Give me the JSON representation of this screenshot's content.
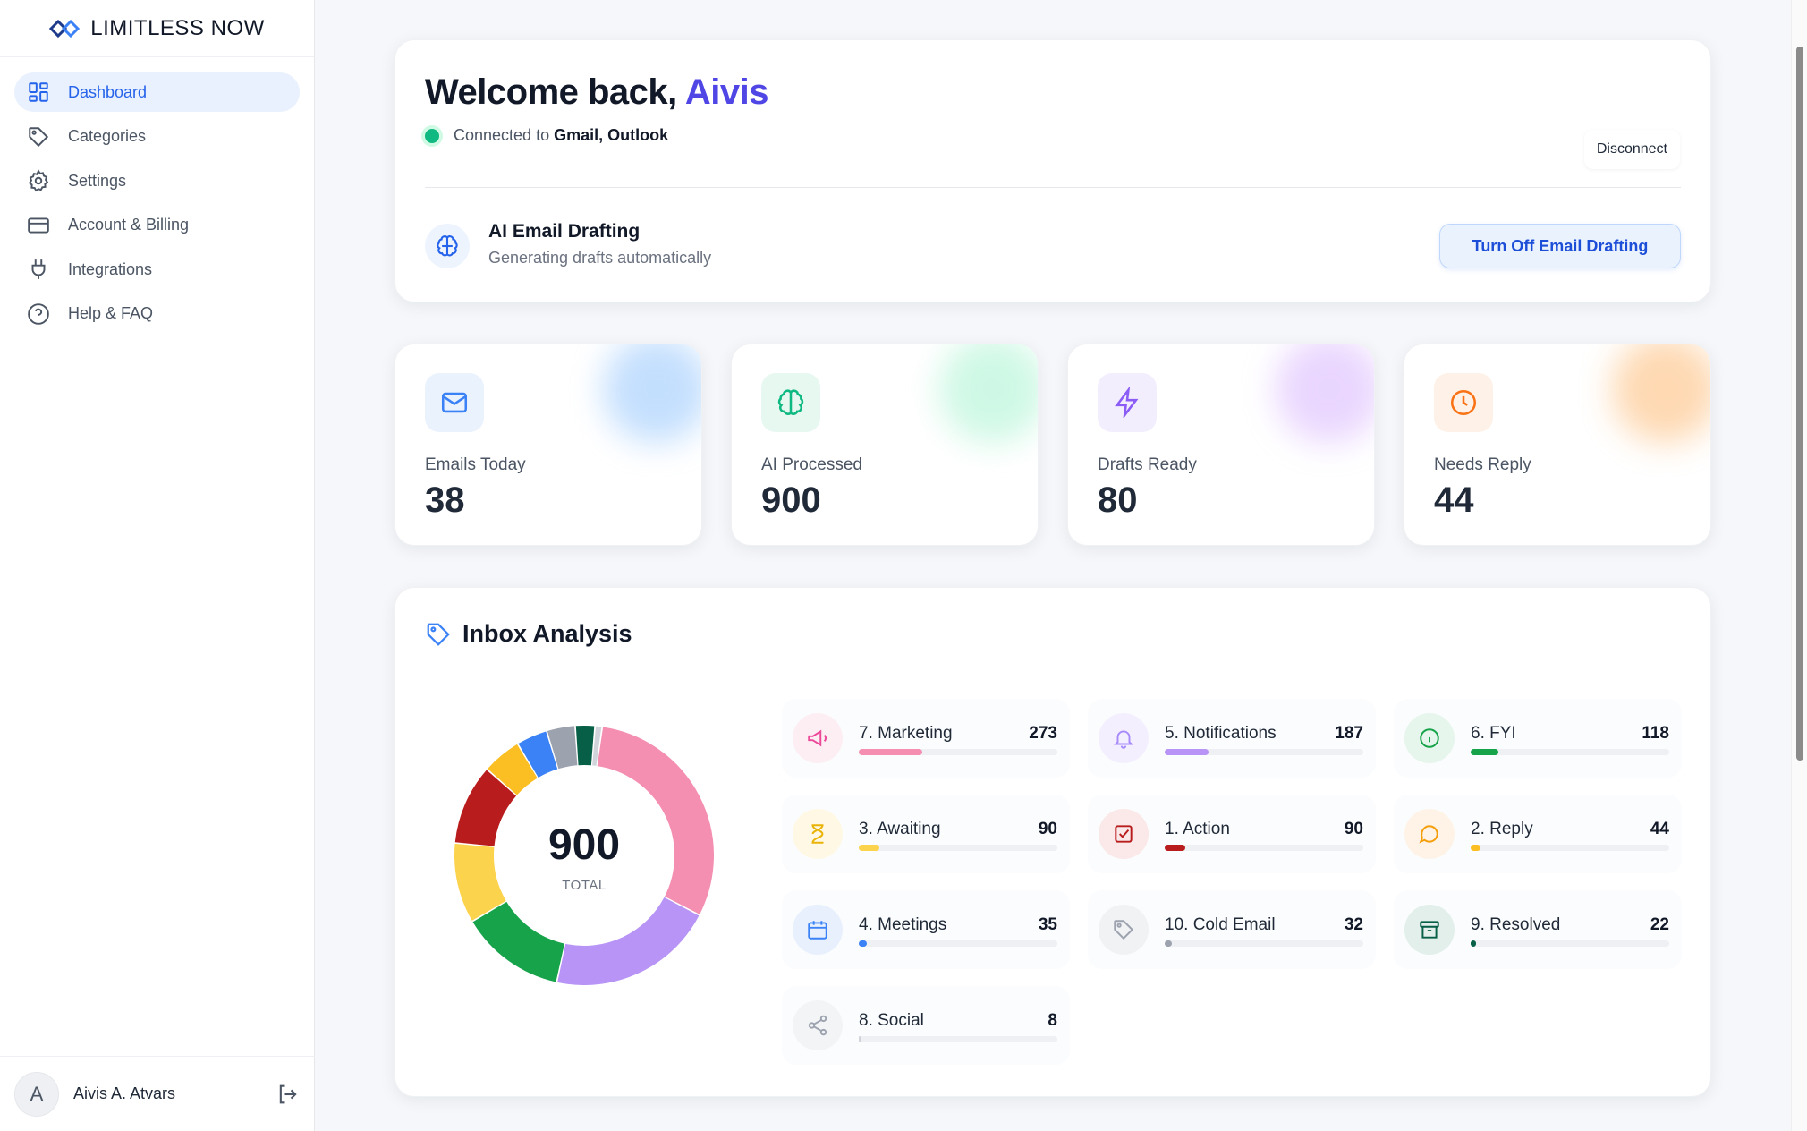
{
  "brand": {
    "name": "LIMITLESS NOW"
  },
  "sidebar": {
    "items": [
      {
        "label": "Dashboard",
        "icon": "dashboard-icon",
        "active": true
      },
      {
        "label": "Categories",
        "icon": "tag-icon"
      },
      {
        "label": "Settings",
        "icon": "gear-icon"
      },
      {
        "label": "Account & Billing",
        "icon": "credit-card-icon"
      },
      {
        "label": "Integrations",
        "icon": "plug-icon"
      },
      {
        "label": "Help & FAQ",
        "icon": "help-circle-icon"
      }
    ],
    "user": {
      "initial": "A",
      "name": "Aivis A. Atvars"
    }
  },
  "welcome": {
    "greeting": "Welcome back,",
    "name": "Aivis",
    "connected_prefix": "Connected to",
    "connected_services": "Gmail, Outlook",
    "disconnect_label": "Disconnect"
  },
  "drafting": {
    "title": "AI Email Drafting",
    "subtitle": "Generating drafts automatically",
    "button_label": "Turn Off Email Drafting"
  },
  "stats": [
    {
      "label": "Emails Today",
      "value": "38",
      "icon": "mail-icon",
      "color": "#3b82f6"
    },
    {
      "label": "AI Processed",
      "value": "900",
      "icon": "brain-icon",
      "color": "#10b981"
    },
    {
      "label": "Drafts Ready",
      "value": "80",
      "icon": "lightning-icon",
      "color": "#8b5cf6"
    },
    {
      "label": "Needs Reply",
      "value": "44",
      "icon": "clock-icon",
      "color": "#f97316"
    }
  ],
  "inbox": {
    "title": "Inbox Analysis",
    "total": "900",
    "total_label": "TOTAL",
    "categories": [
      {
        "label": "7. Marketing",
        "value": 273,
        "color": "#f48fb1",
        "icon": "megaphone-icon"
      },
      {
        "label": "5. Notifications",
        "value": 187,
        "color": "#b794f6",
        "icon": "bell-icon"
      },
      {
        "label": "6. FYI",
        "value": 118,
        "color": "#16a34a",
        "icon": "info-icon"
      },
      {
        "label": "3. Awaiting",
        "value": 90,
        "color": "#fcd34d",
        "icon": "hourglass-icon"
      },
      {
        "label": "1. Action",
        "value": 90,
        "color": "#b91c1c",
        "icon": "checkbox-icon"
      },
      {
        "label": "2. Reply",
        "value": 44,
        "color": "#fbbf24",
        "icon": "chat-bubble-icon"
      },
      {
        "label": "4. Meetings",
        "value": 35,
        "color": "#3b82f6",
        "icon": "calendar-icon"
      },
      {
        "label": "10. Cold Email",
        "value": 32,
        "color": "#9ca3af",
        "icon": "tag-icon"
      },
      {
        "label": "9. Resolved",
        "value": 22,
        "color": "#065f46",
        "icon": "archive-icon"
      },
      {
        "label": "8. Social",
        "value": 8,
        "color": "#d1d5db",
        "icon": "share-icon"
      }
    ]
  },
  "chart_data": {
    "type": "pie",
    "categories": [
      "7. Marketing",
      "5. Notifications",
      "6. FYI",
      "3. Awaiting",
      "1. Action",
      "2. Reply",
      "4. Meetings",
      "10. Cold Email",
      "9. Resolved",
      "8. Social"
    ],
    "values": [
      273,
      187,
      118,
      90,
      90,
      44,
      35,
      32,
      22,
      8
    ],
    "center_value": "900",
    "center_label": "TOTAL"
  }
}
